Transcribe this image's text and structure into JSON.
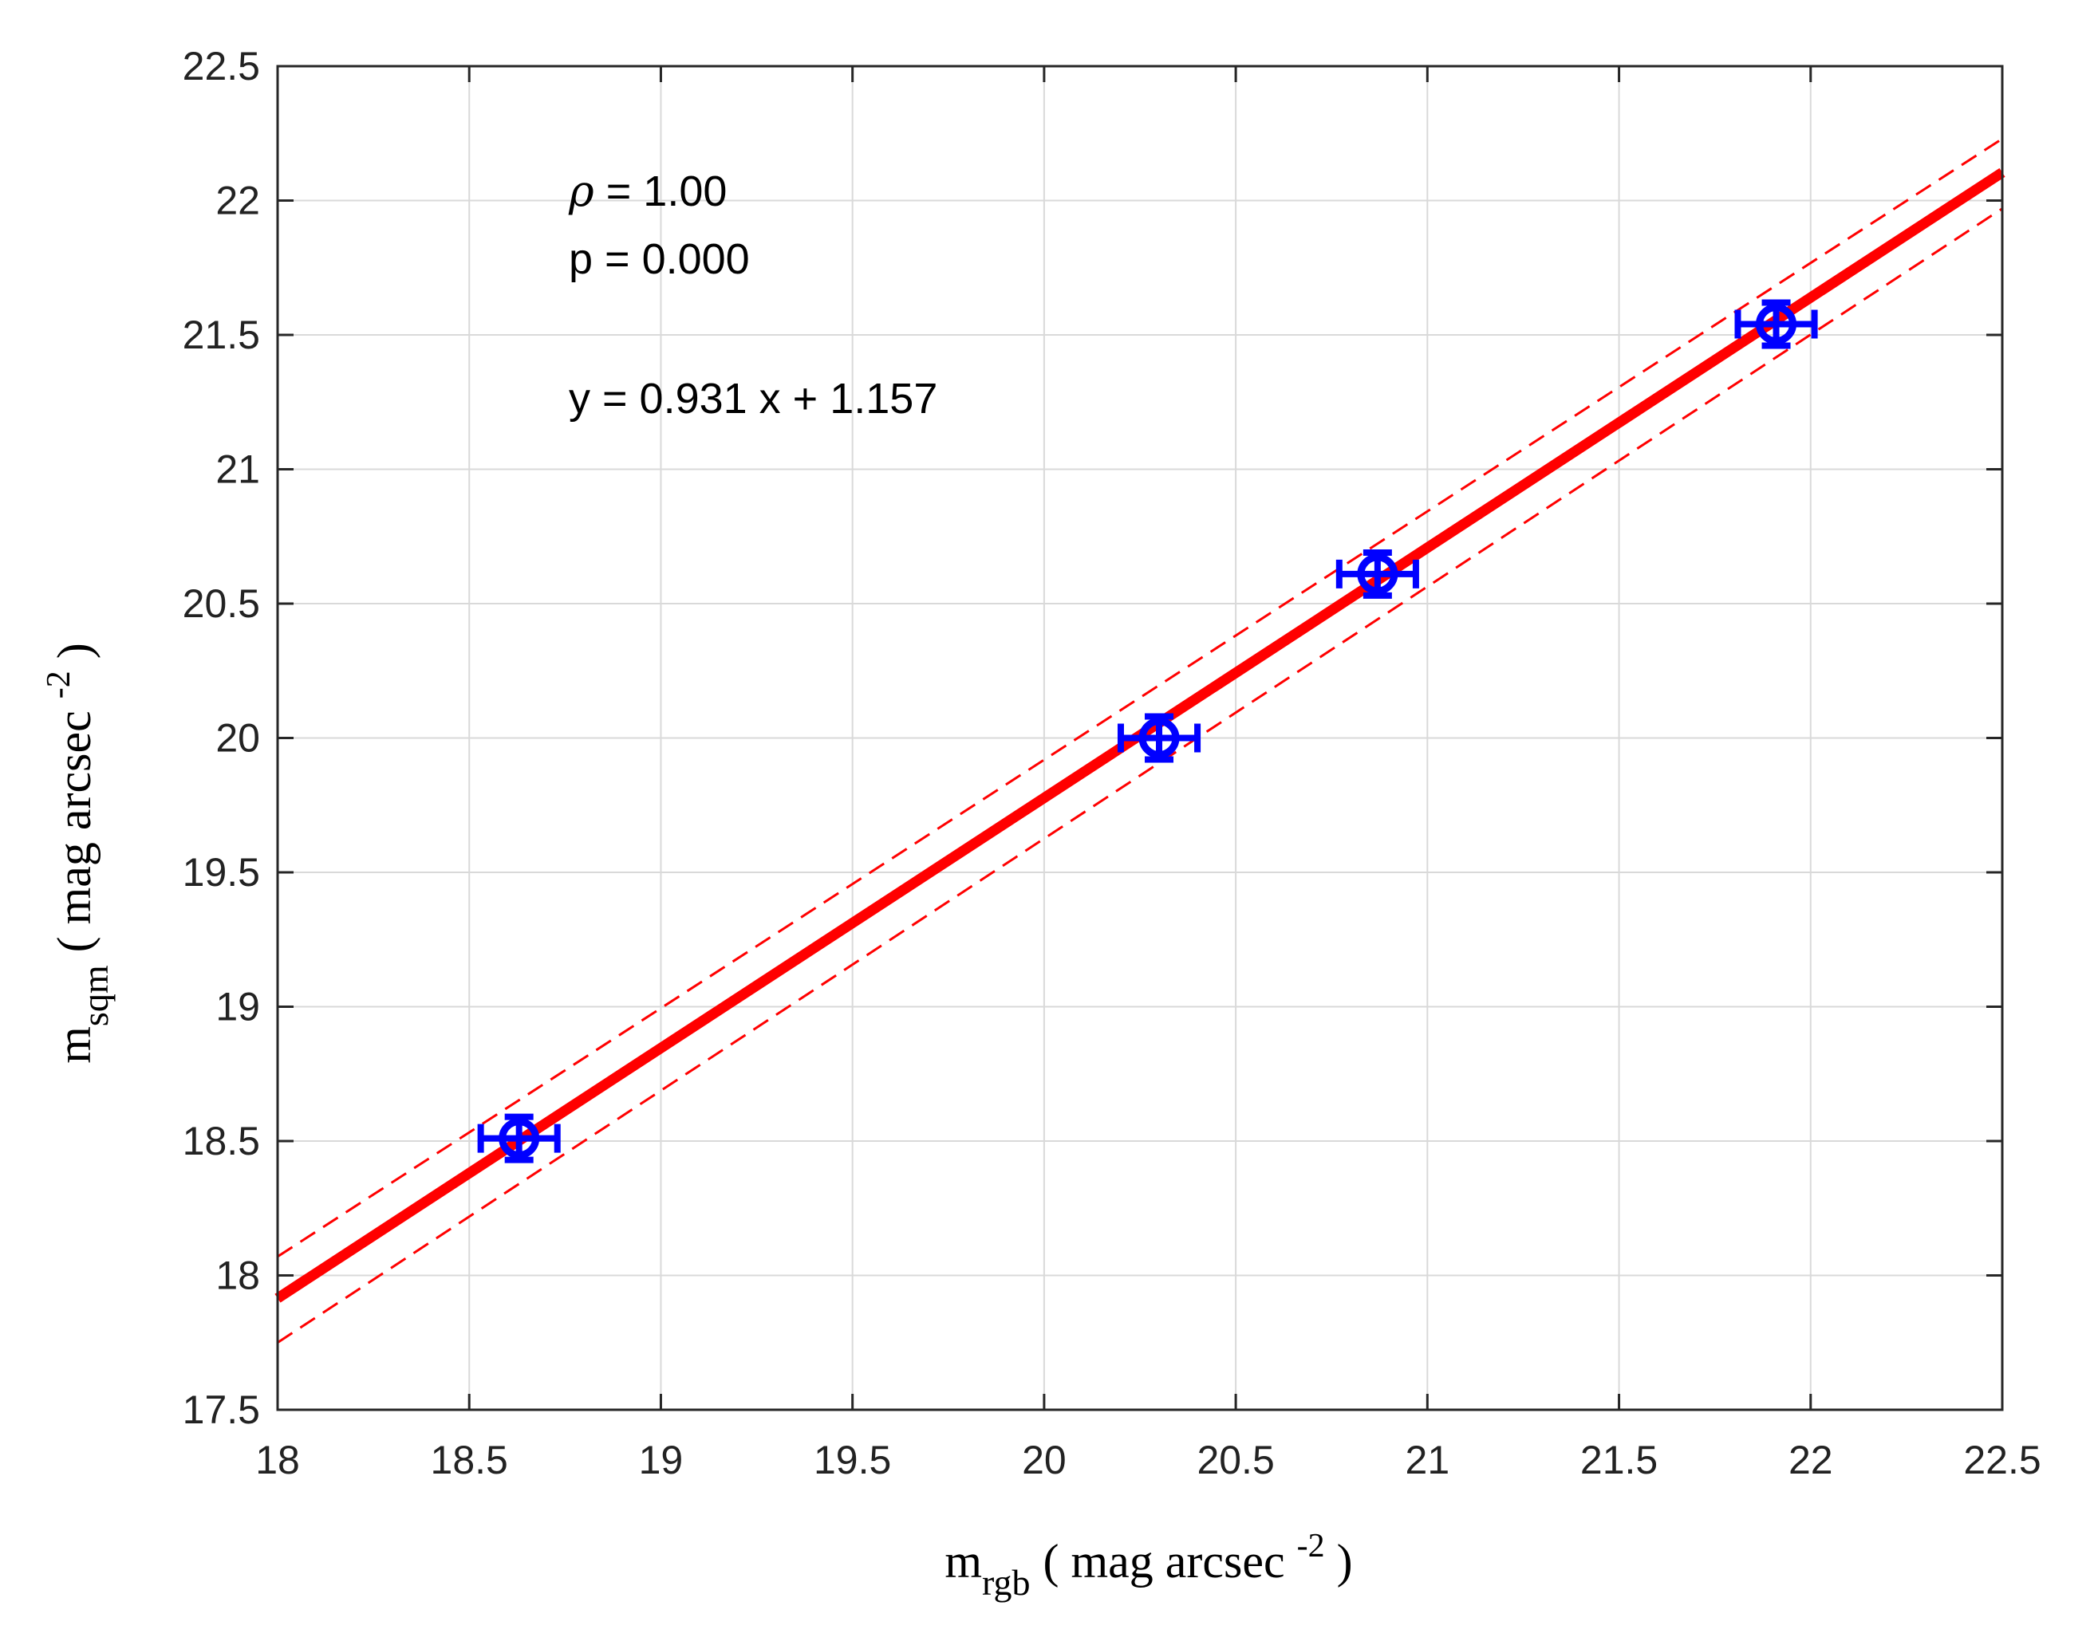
{
  "chart_data": {
    "type": "scatter",
    "title": "",
    "xlabel": {
      "main": "m",
      "sub": "rgb",
      "unit_open": "( mag arcsec ",
      "unit_sup": "-2",
      "unit_close": " )"
    },
    "ylabel": {
      "main": "m",
      "sub": "sqm",
      "unit_open": "( mag arcsec ",
      "unit_sup": "-2",
      "unit_close": " )"
    },
    "xlim": [
      18,
      22.5
    ],
    "ylim": [
      17.5,
      22.5
    ],
    "xticks": [
      18,
      18.5,
      19,
      19.5,
      20,
      20.5,
      21,
      21.5,
      22,
      22.5
    ],
    "yticks": [
      17.5,
      18,
      18.5,
      19,
      19.5,
      20,
      20.5,
      21,
      21.5,
      22,
      22.5
    ],
    "xtick_labels": [
      "18",
      "18.5",
      "19",
      "19.5",
      "20",
      "20.5",
      "21",
      "21.5",
      "22",
      "22.5"
    ],
    "ytick_labels": [
      "17.5",
      "18",
      "18.5",
      "19",
      "19.5",
      "20",
      "20.5",
      "21",
      "21.5",
      "22",
      "22.5"
    ],
    "grid": true,
    "points": [
      {
        "x": 18.63,
        "y": 18.51,
        "xerr": 0.1,
        "yerr": 0.08
      },
      {
        "x": 20.3,
        "y": 20.0,
        "xerr": 0.1,
        "yerr": 0.08
      },
      {
        "x": 20.87,
        "y": 20.61,
        "xerr": 0.1,
        "yerr": 0.08
      },
      {
        "x": 21.91,
        "y": 21.54,
        "xerr": 0.1,
        "yerr": 0.08
      }
    ],
    "fit": {
      "slope": 0.931,
      "intercept": 1.157
    },
    "confidence_band": {
      "upper": [
        [
          18,
          18.07
        ],
        [
          22.5,
          22.23
        ]
      ],
      "lower": [
        [
          18,
          17.75
        ],
        [
          22.5,
          21.97
        ]
      ]
    },
    "annotations": {
      "rho_symbol": "ρ",
      "rho_text": " = 1.00",
      "p_text": "p = 0.000",
      "equation": "y = 0.931 x + 1.157"
    },
    "colors": {
      "points": "#0000ff",
      "fit": "#ff0000",
      "grid": "#d9d9d9",
      "axes": "#262626"
    }
  }
}
